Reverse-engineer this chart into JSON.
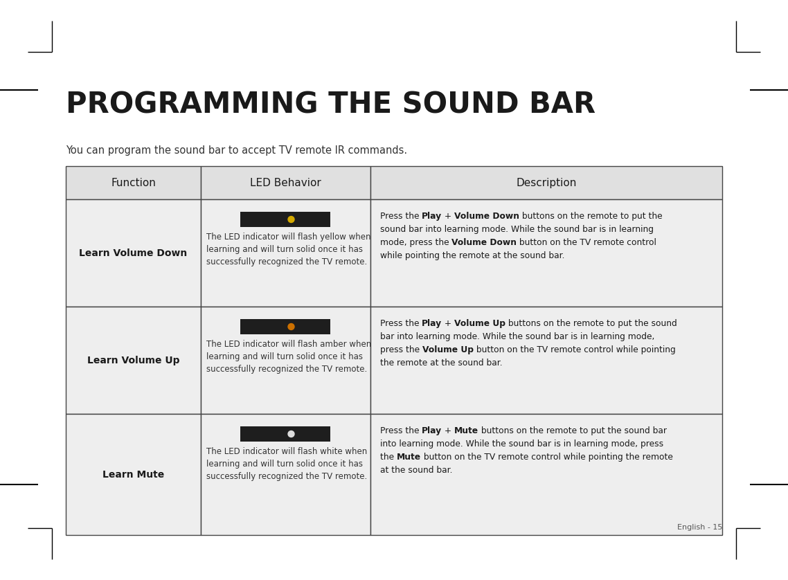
{
  "title": "PROGRAMMING THE SOUND BAR",
  "subtitle": "You can program the sound bar to accept TV remote IR commands.",
  "page_label": "English - 15",
  "background_color": "#ffffff",
  "table": {
    "header": [
      "Function",
      "LED Behavior",
      "Description"
    ],
    "header_bg": "#e0e0e0",
    "row_bg": "#eeeeee",
    "border_color": "#555555",
    "rows": [
      {
        "function": "Learn Volume Down",
        "led_color": "#d4a900",
        "led_behavior": "The LED indicator will flash yellow when\nlearning and will turn solid once it has\nsuccessfully recognized the TV remote.",
        "desc_lines": [
          [
            [
              "Press the ",
              false
            ],
            [
              "Play",
              true
            ],
            [
              " + ",
              false
            ],
            [
              "Volume Down",
              true
            ],
            [
              " buttons on the remote to put the",
              false
            ]
          ],
          [
            [
              "sound bar into learning mode. While the sound bar is in learning",
              false
            ]
          ],
          [
            [
              "mode, press the ",
              false
            ],
            [
              "Volume Down",
              true
            ],
            [
              " button on the TV remote control",
              false
            ]
          ],
          [
            [
              "while pointing the remote at the sound bar.",
              false
            ]
          ]
        ]
      },
      {
        "function": "Learn Volume Up",
        "led_color": "#cc7000",
        "led_behavior": "The LED indicator will flash amber when\nlearning and will turn solid once it has\nsuccessfully recognized the TV remote.",
        "desc_lines": [
          [
            [
              "Press the ",
              false
            ],
            [
              "Play",
              true
            ],
            [
              " + ",
              false
            ],
            [
              "Volume Up",
              true
            ],
            [
              " buttons on the remote to put the sound",
              false
            ]
          ],
          [
            [
              "bar into learning mode. While the sound bar is in learning mode,",
              false
            ]
          ],
          [
            [
              "press the ",
              false
            ],
            [
              "Volume Up",
              true
            ],
            [
              " button on the TV remote control while pointing",
              false
            ]
          ],
          [
            [
              "the remote at the sound bar.",
              false
            ]
          ]
        ]
      },
      {
        "function": "Learn Mute",
        "led_color": "#dddddd",
        "led_behavior": "The LED indicator will flash white when\nlearning and will turn solid once it has\nsuccessfully recognized the TV remote.",
        "desc_lines": [
          [
            [
              "Press the ",
              false
            ],
            [
              "Play",
              true
            ],
            [
              " + ",
              false
            ],
            [
              "Mute",
              true
            ],
            [
              " buttons on the remote to put the sound bar",
              false
            ]
          ],
          [
            [
              "into learning mode. While the sound bar is in learning mode, press",
              false
            ]
          ],
          [
            [
              "the ",
              false
            ],
            [
              "Mute",
              true
            ],
            [
              " button on the TV remote control while pointing the remote",
              false
            ]
          ],
          [
            [
              "at the sound bar.",
              false
            ]
          ]
        ]
      }
    ]
  }
}
